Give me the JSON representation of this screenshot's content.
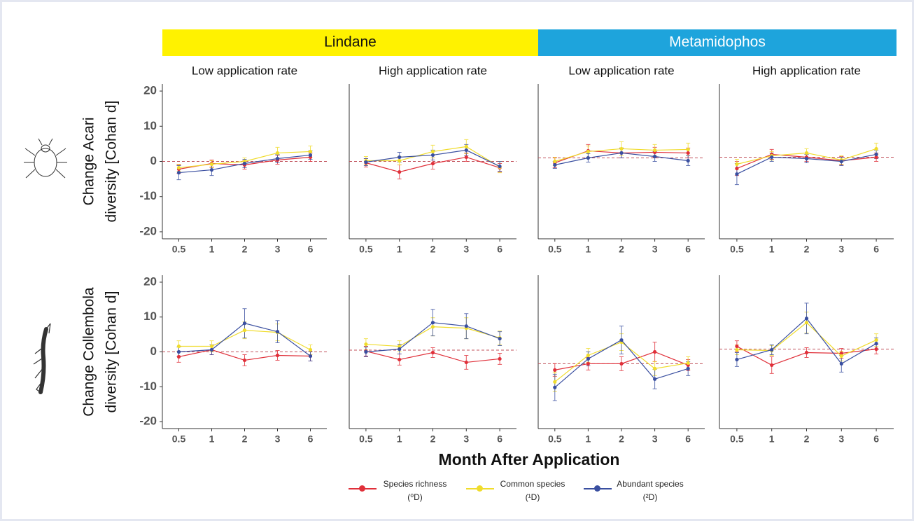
{
  "headers": [
    {
      "label": "Lindane",
      "color": "#fff200"
    },
    {
      "label": "Metamidophos",
      "color": "#1ea4dc"
    }
  ],
  "row_labels": [
    [
      "Change Acari",
      "diversity [Cohan d]"
    ],
    [
      "Change Collembola",
      "diversity [Cohan d]"
    ]
  ],
  "x_label": "Month After Application",
  "chart_data": [
    {
      "type": "line",
      "title": "Low application rate",
      "categories": [
        "0.5",
        "1",
        "2",
        "3",
        "6"
      ],
      "ylim": [
        -22,
        22
      ],
      "yticks": [
        -20,
        -10,
        0,
        10,
        20
      ],
      "reference_line": 0,
      "series": [
        {
          "name": "Species richness (⁰D)",
          "color": "#e0303a",
          "values": [
            -2.2,
            -0.6,
            -1,
            0.4,
            1.2
          ],
          "errors": [
            1.2,
            1,
            1.2,
            1.2,
            1.2
          ]
        },
        {
          "name": "Common species (¹D)",
          "color": "#f0dc2c",
          "values": [
            -1.8,
            -0.8,
            0,
            2.4,
            2.8
          ],
          "errors": [
            1,
            1,
            1,
            1.6,
            1.6
          ]
        },
        {
          "name": "Abundant species (²D)",
          "color": "#3a4fa0",
          "values": [
            -3.2,
            -2.4,
            -0.6,
            0.8,
            1.8
          ],
          "errors": [
            2,
            1.6,
            1.2,
            1.2,
            1.2
          ]
        }
      ]
    },
    {
      "type": "line",
      "title": "High application rate",
      "categories": [
        "0.5",
        "1",
        "2",
        "3",
        "6"
      ],
      "ylim": [
        -22,
        22
      ],
      "reference_line": 0,
      "series": [
        {
          "name": "Species richness (⁰D)",
          "color": "#e0303a",
          "values": [
            -0.4,
            -3,
            -0.6,
            1.2,
            -1.8
          ],
          "errors": [
            1.2,
            2,
            1.6,
            1.2,
            1.2
          ]
        },
        {
          "name": "Common species (¹D)",
          "color": "#f0dc2c",
          "values": [
            0.2,
            0.2,
            2.8,
            4.2,
            -1.6
          ],
          "errors": [
            1.2,
            1.2,
            1.8,
            2,
            1.6
          ]
        },
        {
          "name": "Abundant species (²D)",
          "color": "#3a4fa0",
          "values": [
            -0.2,
            1.2,
            1.8,
            3.2,
            -1.4
          ],
          "errors": [
            1,
            1.4,
            1.4,
            1.6,
            1.4
          ]
        }
      ]
    },
    {
      "type": "line",
      "title": "Low application rate",
      "categories": [
        "0.5",
        "1",
        "2",
        "3",
        "6"
      ],
      "ylim": [
        -22,
        22
      ],
      "reference_line": 1,
      "series": [
        {
          "name": "Species richness (⁰D)",
          "color": "#e0303a",
          "values": [
            -0.4,
            3,
            2.4,
            2.6,
            2.4
          ],
          "errors": [
            1.4,
            1.8,
            1.4,
            1.4,
            1.4
          ]
        },
        {
          "name": "Common species (¹D)",
          "color": "#f0dc2c",
          "values": [
            0,
            2.8,
            3.6,
            3.2,
            3.4
          ],
          "errors": [
            1.2,
            1.6,
            2,
            1.6,
            1.8
          ]
        },
        {
          "name": "Abundant species (²D)",
          "color": "#3a4fa0",
          "values": [
            -1,
            1,
            2.4,
            1.4,
            0.2
          ],
          "errors": [
            1,
            1.2,
            1.4,
            1.4,
            1.4
          ]
        }
      ]
    },
    {
      "type": "line",
      "title": "High application rate",
      "categories": [
        "0.5",
        "1",
        "2",
        "3",
        "6"
      ],
      "ylim": [
        -22,
        22
      ],
      "reference_line": 1.2,
      "series": [
        {
          "name": "Species richness (⁰D)",
          "color": "#e0303a",
          "values": [
            -2,
            2,
            1.2,
            0.2,
            1.2
          ],
          "errors": [
            2,
            1.4,
            1.2,
            1.2,
            1.2
          ]
        },
        {
          "name": "Common species (¹D)",
          "color": "#f0dc2c",
          "values": [
            -0.8,
            1.6,
            2.4,
            0.4,
            3.6
          ],
          "errors": [
            1.4,
            1.2,
            1.2,
            1.2,
            1.6
          ]
        },
        {
          "name": "Abundant species (²D)",
          "color": "#3a4fa0",
          "values": [
            -3.6,
            1.2,
            0.8,
            0,
            2
          ],
          "errors": [
            3,
            1.2,
            1.2,
            1.2,
            1.2
          ]
        }
      ]
    },
    {
      "type": "line",
      "categories": [
        "0.5",
        "1",
        "2",
        "3",
        "6"
      ],
      "ylim": [
        -22,
        22
      ],
      "yticks": [
        -20,
        -10,
        0,
        10,
        20
      ],
      "reference_line": 0,
      "series": [
        {
          "name": "Species richness (⁰D)",
          "color": "#e0303a",
          "values": [
            -1.4,
            0.6,
            -2.4,
            -1,
            -1.2
          ],
          "errors": [
            1.6,
            1.4,
            1.6,
            1.4,
            1.4
          ]
        },
        {
          "name": "Common species (¹D)",
          "color": "#f0dc2c",
          "values": [
            1.6,
            1.6,
            6.2,
            5.6,
            0.6
          ],
          "errors": [
            1.6,
            1.6,
            2.4,
            2.4,
            1.4
          ]
        },
        {
          "name": "Abundant species (²D)",
          "color": "#3a4fa0",
          "values": [
            0,
            0.6,
            8.2,
            5.8,
            -1.2
          ],
          "errors": [
            1.4,
            1.4,
            4.2,
            3.2,
            1.4
          ]
        }
      ]
    },
    {
      "type": "line",
      "categories": [
        "0.5",
        "1",
        "2",
        "3",
        "6"
      ],
      "ylim": [
        -22,
        22
      ],
      "reference_line": 0.5,
      "series": [
        {
          "name": "Species richness (⁰D)",
          "color": "#e0303a",
          "values": [
            0.2,
            -2.2,
            -0.2,
            -3,
            -2
          ],
          "errors": [
            1.4,
            1.6,
            1.4,
            2,
            1.6
          ]
        },
        {
          "name": "Common species (¹D)",
          "color": "#f0dc2c",
          "values": [
            2.2,
            1.6,
            7.2,
            6.8,
            4
          ],
          "errors": [
            1.6,
            1.6,
            2.6,
            3,
            2
          ]
        },
        {
          "name": "Abundant species (²D)",
          "color": "#3a4fa0",
          "values": [
            0,
            0.8,
            8.4,
            7.4,
            3.8
          ],
          "errors": [
            1.4,
            1.4,
            3.8,
            3.6,
            2
          ]
        }
      ]
    },
    {
      "type": "line",
      "categories": [
        "0.5",
        "1",
        "2",
        "3",
        "6"
      ],
      "ylim": [
        -22,
        22
      ],
      "reference_line": -3.4,
      "series": [
        {
          "name": "Species richness (⁰D)",
          "color": "#e0303a",
          "values": [
            -5.2,
            -3.4,
            -3.4,
            0,
            -3.8
          ],
          "errors": [
            1.8,
            1.8,
            2,
            2.8,
            1.6
          ]
        },
        {
          "name": "Common species (¹D)",
          "color": "#f0dc2c",
          "values": [
            -8.6,
            -1,
            2.8,
            -4.8,
            -3.2
          ],
          "errors": [
            2.8,
            2,
            2.4,
            2,
            1.8
          ]
        },
        {
          "name": "Abundant species (²D)",
          "color": "#3a4fa0",
          "values": [
            -10.2,
            -2,
            3.4,
            -7.8,
            -4.8
          ],
          "errors": [
            3.8,
            2,
            4,
            2.8,
            2
          ]
        }
      ]
    },
    {
      "type": "line",
      "categories": [
        "0.5",
        "1",
        "2",
        "3",
        "6"
      ],
      "ylim": [
        -22,
        22
      ],
      "reference_line": 0.8,
      "series": [
        {
          "name": "Species richness (⁰D)",
          "color": "#e0303a",
          "values": [
            1.6,
            -3.8,
            -0.2,
            -0.4,
            0.8
          ],
          "errors": [
            1.6,
            2.4,
            1.4,
            1.4,
            1.4
          ]
        },
        {
          "name": "Common species (¹D)",
          "color": "#f0dc2c",
          "values": [
            0.6,
            0.4,
            8.4,
            -1.2,
            3.4
          ],
          "errors": [
            1.4,
            1.4,
            3,
            1.4,
            1.8
          ]
        },
        {
          "name": "Abundant species (²D)",
          "color": "#3a4fa0",
          "values": [
            -2.2,
            0.6,
            9.6,
            -3.4,
            2.4
          ],
          "errors": [
            2,
            1.4,
            4.4,
            2.4,
            1.6
          ]
        }
      ]
    }
  ]
}
